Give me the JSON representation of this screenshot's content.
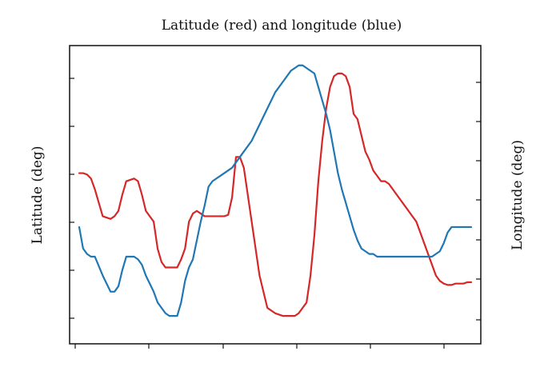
{
  "chart_data": {
    "type": "line",
    "title": "Latitude (red) and longitude (blue)",
    "ylabel_left": "Latitude (deg)",
    "ylabel_right": "Longitude (deg)",
    "xlabel": "",
    "tick_labels_shown": false,
    "grid": false,
    "legend": "none",
    "xlim": [
      0,
      100
    ],
    "ylim": [
      0,
      100
    ],
    "series": [
      {
        "color": "#d62728",
        "x": [
          0,
          1,
          2,
          3,
          4,
          6,
          8,
          9,
          10,
          11,
          12,
          14,
          15,
          16,
          17,
          18,
          19,
          20,
          21,
          22,
          23,
          24,
          25,
          26,
          27,
          28,
          29,
          30,
          31,
          32,
          33,
          34,
          35,
          36,
          37,
          38,
          39,
          40,
          41,
          42,
          44,
          46,
          48,
          50,
          52,
          54,
          55,
          56,
          57,
          58,
          59,
          60,
          61,
          62,
          63,
          64,
          65,
          66,
          67,
          68,
          69,
          70,
          71,
          72,
          73,
          74,
          75,
          76,
          77,
          78,
          79,
          80,
          81,
          82,
          83,
          84,
          85,
          86,
          87,
          88,
          89,
          90,
          91,
          92,
          93,
          94,
          95,
          96,
          97,
          98,
          99,
          100
        ],
        "y": [
          58,
          58,
          57.5,
          56,
          52,
          42,
          41,
          42,
          44,
          50,
          55,
          56,
          55,
          50,
          44,
          42,
          40,
          30,
          25,
          23,
          23,
          23,
          23,
          26,
          30,
          40,
          43,
          44,
          43,
          42,
          42,
          42,
          42,
          42,
          42,
          42.5,
          49,
          64,
          64,
          60,
          40,
          20,
          8,
          6,
          5,
          5,
          5,
          6,
          8,
          10,
          20,
          35,
          55,
          70,
          82,
          90,
          94,
          95,
          95,
          94,
          90,
          80,
          78,
          72,
          66,
          63,
          59,
          57,
          55,
          55,
          54,
          52,
          50,
          48,
          46,
          44,
          42,
          40,
          36,
          32,
          28,
          24,
          20,
          18,
          17,
          16.5,
          16.5,
          17,
          17,
          17,
          17.5,
          17.5
        ]
      },
      {
        "color": "#1f77b4",
        "x": [
          0,
          1,
          2,
          3,
          4,
          6,
          8,
          9,
          10,
          11,
          12,
          14,
          15,
          16,
          17,
          18,
          19,
          20,
          21,
          22,
          23,
          24,
          25,
          26,
          27,
          28,
          29,
          30,
          31,
          32,
          33,
          34,
          35,
          36,
          37,
          38,
          39,
          40,
          41,
          42,
          44,
          46,
          48,
          50,
          52,
          54,
          55,
          56,
          57,
          58,
          59,
          60,
          61,
          62,
          63,
          64,
          65,
          66,
          67,
          68,
          69,
          70,
          71,
          72,
          73,
          74,
          75,
          76,
          77,
          78,
          79,
          80,
          81,
          82,
          83,
          84,
          85,
          86,
          87,
          88,
          89,
          90,
          91,
          92,
          93,
          94,
          95,
          96,
          97,
          98,
          99,
          100
        ],
        "y": [
          38,
          30,
          28,
          27,
          27,
          20,
          14,
          14,
          16,
          22,
          27,
          27,
          26,
          24,
          20,
          17,
          14,
          10,
          8,
          6,
          5,
          5,
          5,
          10,
          18,
          23,
          26,
          33,
          40,
          46,
          53,
          55,
          56,
          57,
          58,
          59,
          60,
          62,
          64,
          66,
          70,
          76,
          82,
          88,
          92,
          96,
          97,
          98,
          98,
          97,
          96,
          95,
          90,
          85,
          80,
          74,
          66,
          58,
          52,
          47,
          42,
          37,
          33,
          30,
          29,
          28,
          28,
          27,
          27,
          27,
          27,
          27,
          27,
          27,
          27,
          27,
          27,
          27,
          27,
          27,
          27,
          27,
          28,
          29,
          32,
          36,
          38,
          38,
          38,
          38,
          38,
          38
        ]
      }
    ]
  }
}
